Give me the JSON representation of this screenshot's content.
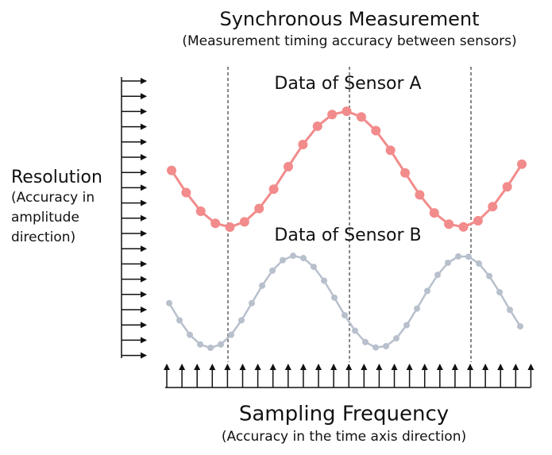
{
  "header": {
    "title": "Synchronous Measurement",
    "subtitle": "(Measurement timing accuracy between sensors)"
  },
  "sensors": [
    {
      "label": "Data of Sensor A"
    },
    {
      "label": "Data of Sensor B"
    }
  ],
  "resolution": {
    "title": "Resolution",
    "lines": [
      "(Accuracy in",
      "amplitude",
      "direction)"
    ]
  },
  "sampling": {
    "title": "Sampling Frequency",
    "subtitle": "(Accuracy in the time axis direction)"
  }
}
